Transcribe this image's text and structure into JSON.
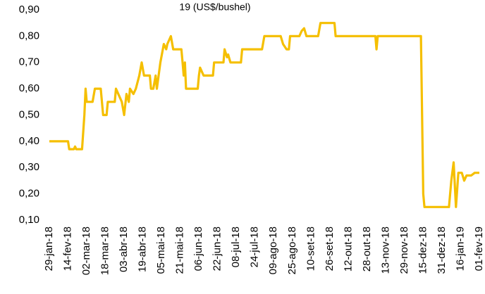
{
  "chart_data": {
    "type": "line",
    "title": "19 (US$/bushel)",
    "x": [
      "2018-01-29",
      "2018-02-14",
      "2018-02-15",
      "2018-02-19",
      "2018-02-20",
      "2018-02-21",
      "2018-02-26",
      "2018-02-28",
      "2018-03-01",
      "2018-03-02",
      "2018-03-07",
      "2018-03-09",
      "2018-03-14",
      "2018-03-16",
      "2018-03-19",
      "2018-03-20",
      "2018-03-26",
      "2018-03-27",
      "2018-04-01",
      "2018-04-03",
      "2018-04-05",
      "2018-04-07",
      "2018-04-08",
      "2018-04-11",
      "2018-04-13",
      "2018-04-16",
      "2018-04-18",
      "2018-04-20",
      "2018-04-25",
      "2018-04-26",
      "2018-04-28",
      "2018-04-30",
      "2018-05-01",
      "2018-05-04",
      "2018-05-07",
      "2018-05-09",
      "2018-05-10",
      "2018-05-13",
      "2018-05-15",
      "2018-05-22",
      "2018-05-23",
      "2018-05-24",
      "2018-05-25",
      "2018-05-26",
      "2018-06-05",
      "2018-06-06",
      "2018-06-07",
      "2018-06-10",
      "2018-06-18",
      "2018-06-19",
      "2018-06-27",
      "2018-06-28",
      "2018-06-30",
      "2018-07-01",
      "2018-07-03",
      "2018-07-12",
      "2018-07-13",
      "2018-07-30",
      "2018-08-01",
      "2018-08-15",
      "2018-08-17",
      "2018-08-20",
      "2018-08-22",
      "2018-08-23",
      "2018-08-31",
      "2018-09-02",
      "2018-09-04",
      "2018-09-06",
      "2018-09-16",
      "2018-09-18",
      "2018-09-30",
      "2018-10-01",
      "2018-11-04",
      "2018-11-05",
      "2018-11-06",
      "2018-12-13",
      "2018-12-15",
      "2018-12-16",
      "2019-01-06",
      "2019-01-08",
      "2019-01-10",
      "2019-01-12",
      "2019-01-14",
      "2019-01-17",
      "2019-01-19",
      "2019-01-21",
      "2019-01-25",
      "2019-01-28",
      "2019-02-01"
    ],
    "series": [
      {
        "color": "#f5bf00",
        "values": [
          0.4,
          0.4,
          0.37,
          0.37,
          0.38,
          0.37,
          0.37,
          0.5,
          0.6,
          0.55,
          0.55,
          0.6,
          0.6,
          0.5,
          0.5,
          0.55,
          0.55,
          0.6,
          0.55,
          0.5,
          0.58,
          0.55,
          0.6,
          0.58,
          0.6,
          0.65,
          0.7,
          0.65,
          0.65,
          0.6,
          0.6,
          0.65,
          0.6,
          0.7,
          0.77,
          0.75,
          0.77,
          0.8,
          0.75,
          0.75,
          0.7,
          0.65,
          0.7,
          0.6,
          0.6,
          0.65,
          0.68,
          0.65,
          0.65,
          0.7,
          0.7,
          0.75,
          0.72,
          0.73,
          0.7,
          0.7,
          0.75,
          0.75,
          0.8,
          0.8,
          0.77,
          0.75,
          0.75,
          0.8,
          0.8,
          0.82,
          0.83,
          0.8,
          0.8,
          0.85,
          0.85,
          0.8,
          0.8,
          0.75,
          0.8,
          0.8,
          0.2,
          0.15,
          0.15,
          0.25,
          0.32,
          0.15,
          0.28,
          0.28,
          0.25,
          0.27,
          0.27,
          0.28,
          0.28
        ]
      }
    ],
    "xlim": [
      "2018-01-29",
      "2019-02-01"
    ],
    "xticks": [
      {
        "value": "2018-01-29",
        "label": "29-jan-18"
      },
      {
        "value": "2018-02-14",
        "label": "14-fev-18"
      },
      {
        "value": "2018-03-02",
        "label": "02-mar-18"
      },
      {
        "value": "2018-03-18",
        "label": "18-mar-18"
      },
      {
        "value": "2018-04-03",
        "label": "03-abr-18"
      },
      {
        "value": "2018-04-19",
        "label": "19-abr-18"
      },
      {
        "value": "2018-05-05",
        "label": "05-mai-18"
      },
      {
        "value": "2018-05-21",
        "label": "21-mai-18"
      },
      {
        "value": "2018-06-06",
        "label": "06-jun-18"
      },
      {
        "value": "2018-06-22",
        "label": "22-jun-18"
      },
      {
        "value": "2018-07-08",
        "label": "08-jul-18"
      },
      {
        "value": "2018-07-24",
        "label": "24-jul-18"
      },
      {
        "value": "2018-08-09",
        "label": "09-ago-18"
      },
      {
        "value": "2018-08-25",
        "label": "25-ago-18"
      },
      {
        "value": "2018-09-10",
        "label": "10-set-18"
      },
      {
        "value": "2018-09-26",
        "label": "26-set-18"
      },
      {
        "value": "2018-10-12",
        "label": "12-out-18"
      },
      {
        "value": "2018-10-28",
        "label": "28-out-18"
      },
      {
        "value": "2018-11-13",
        "label": "13-nov-18"
      },
      {
        "value": "2018-11-29",
        "label": "29-nov-18"
      },
      {
        "value": "2018-12-15",
        "label": "15-dez-18"
      },
      {
        "value": "2018-12-31",
        "label": "31-dez-18"
      },
      {
        "value": "2019-01-16",
        "label": "16-jan-19"
      },
      {
        "value": "2019-02-01",
        "label": "01-fev-19"
      }
    ],
    "ylim": [
      0.1,
      0.9
    ],
    "yticks": [
      {
        "value": 0.1,
        "label": "0,10"
      },
      {
        "value": 0.2,
        "label": "0,20"
      },
      {
        "value": 0.3,
        "label": "0,30"
      },
      {
        "value": 0.4,
        "label": "0,40"
      },
      {
        "value": 0.5,
        "label": "0,50"
      },
      {
        "value": 0.6,
        "label": "0,60"
      },
      {
        "value": 0.7,
        "label": "0,70"
      },
      {
        "value": 0.8,
        "label": "0,80"
      },
      {
        "value": 0.9,
        "label": "0,90"
      }
    ],
    "grid": false
  }
}
